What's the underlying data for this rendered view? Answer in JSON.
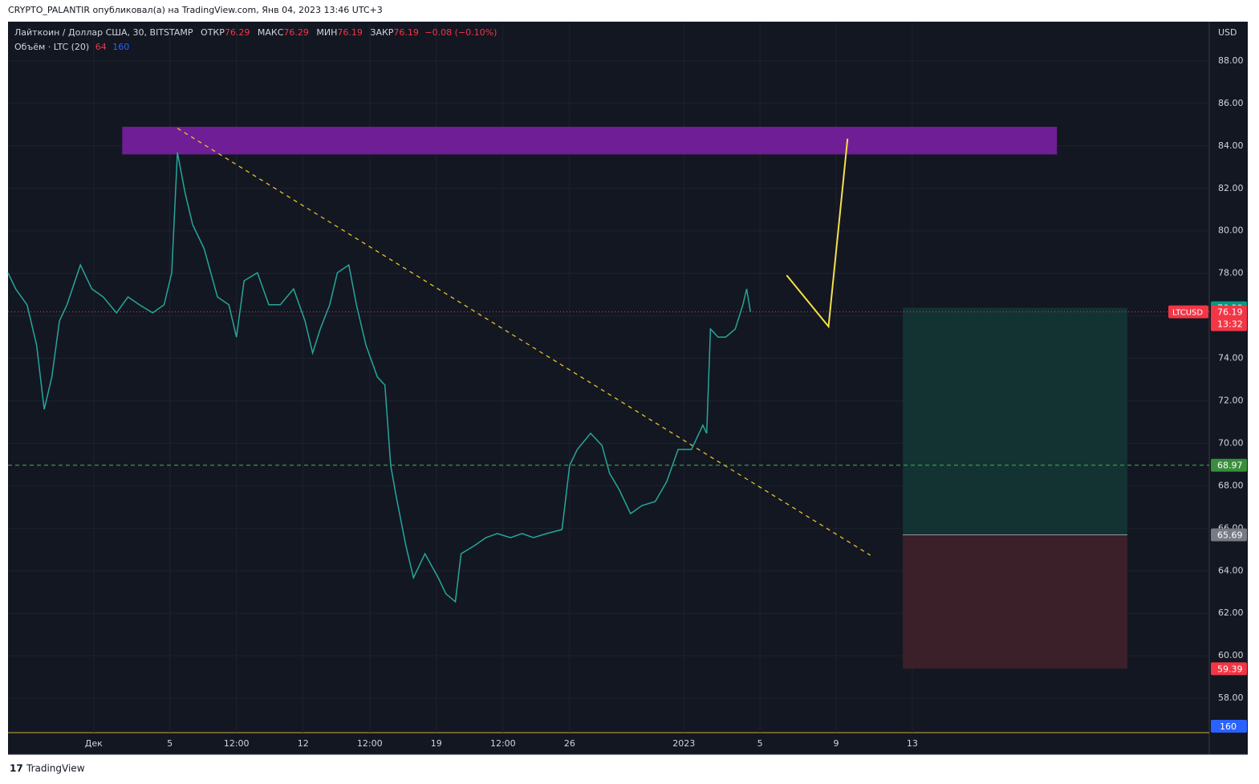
{
  "chart_data": {
    "type": "line",
    "header": "CRYPTO_PALANTIR опубликовал(а) на TradingView.com, Янв 04, 2023 13:46 UTC+3",
    "footer": "TradingView",
    "currency": "USD",
    "legend": {
      "open_label": "ОТКР",
      "open": 76.29,
      "high_label": "МАКС",
      "high": 76.29,
      "low_label": "МИН",
      "low": 76.19,
      "close_label": "ЗАКР",
      "close": 76.19,
      "change": "−0.08 (−0.10%)",
      "volume_label": "Объём · LTC (20)",
      "volume": 64,
      "volume_ma": 160
    },
    "x": [
      -4.5,
      -4.1,
      -3.5,
      -3.0,
      -2.6,
      -2.2,
      -1.8,
      -1.4,
      -0.7,
      -0.1,
      0.5,
      1.2,
      1.8,
      2.4,
      3.1,
      3.7,
      4.1,
      4.4,
      4.8,
      5.2,
      5.8,
      6.5,
      7.1,
      7.5,
      7.9,
      8.6,
      9.2,
      9.8,
      10.5,
      11.1,
      11.5,
      11.9,
      12.4,
      12.8,
      13.4,
      13.8,
      14.3,
      14.9,
      15.3,
      15.6,
      15.9,
      16.4,
      16.8,
      17.4,
      18.1,
      18.5,
      19.0,
      19.3,
      20.0,
      20.6,
      21.2,
      21.9,
      22.5,
      23.1,
      23.8,
      24.6,
      25.0,
      25.4,
      26.1,
      26.7,
      27.1,
      27.6,
      28.2,
      28.8,
      29.5,
      30.1,
      30.7,
      31.4,
      32.0,
      32.2,
      32.4,
      32.8,
      33.2,
      33.7,
      34.1,
      34.3,
      34.5
    ],
    "series": [
      {
        "name": "Лайткоин / Доллар США, 30, BITSTAMP",
        "color": "#26a69a",
        "values": [
          78.03,
          77.27,
          76.52,
          74.63,
          71.6,
          73.12,
          75.76,
          76.52,
          78.4,
          77.27,
          76.89,
          76.14,
          76.89,
          76.52,
          76.14,
          76.52,
          78.03,
          83.69,
          81.8,
          80.29,
          79.16,
          76.89,
          76.52,
          75.0,
          77.65,
          78.03,
          76.52,
          76.52,
          77.27,
          75.76,
          74.25,
          75.38,
          76.52,
          78.03,
          78.4,
          76.52,
          74.63,
          73.12,
          72.74,
          68.96,
          67.45,
          65.18,
          63.67,
          64.8,
          63.67,
          62.92,
          62.54,
          64.8,
          65.18,
          65.56,
          65.75,
          65.56,
          65.75,
          65.56,
          65.75,
          65.94,
          68.96,
          69.71,
          70.47,
          69.9,
          68.58,
          67.83,
          66.69,
          67.07,
          67.26,
          68.2,
          69.71,
          69.71,
          70.85,
          70.47,
          75.38,
          75.0,
          75.0,
          75.38,
          76.52,
          77.27,
          76.19
        ]
      }
    ],
    "xlim": [
      -4.5,
      58.6
    ],
    "xticks": [
      {
        "value": 0,
        "label": "Дек"
      },
      {
        "value": 4,
        "label": "5"
      },
      {
        "value": 7.5,
        "label": "12:00"
      },
      {
        "value": 11,
        "label": "12"
      },
      {
        "value": 14.5,
        "label": "12:00"
      },
      {
        "value": 18,
        "label": "19"
      },
      {
        "value": 21.5,
        "label": "12:00"
      },
      {
        "value": 25,
        "label": "26"
      },
      {
        "value": 31,
        "label": "2023"
      },
      {
        "value": 35,
        "label": "5"
      },
      {
        "value": 39,
        "label": "9"
      },
      {
        "value": 43,
        "label": "13"
      }
    ],
    "ylim": [
      56.38,
      89.81
    ],
    "yticks": [
      {
        "value": 58,
        "label": "58.00"
      },
      {
        "value": 60,
        "label": "60.00"
      },
      {
        "value": 62,
        "label": "62.00"
      },
      {
        "value": 64,
        "label": "64.00"
      },
      {
        "value": 66,
        "label": "66.00"
      },
      {
        "value": 68,
        "label": "68.00"
      },
      {
        "value": 70,
        "label": "70.00"
      },
      {
        "value": 72,
        "label": "72.00"
      },
      {
        "value": 74,
        "label": "74.00"
      },
      {
        "value": 76,
        "label": "76.00"
      },
      {
        "value": 78,
        "label": "78.00"
      },
      {
        "value": 80,
        "label": "80.00"
      },
      {
        "value": 82,
        "label": "82.00"
      },
      {
        "value": 84,
        "label": "84.00"
      },
      {
        "value": 86,
        "label": "86.00"
      },
      {
        "value": 88,
        "label": "88.00"
      }
    ],
    "grid": true,
    "annotations": {
      "zone": {
        "x": [
          1.5,
          50.6
        ],
        "y": [
          83.6,
          84.9
        ],
        "color": "#7b1fa2"
      },
      "trendline": {
        "x": [
          4.4,
          40.8
        ],
        "y": [
          84.83,
          64.73
        ],
        "color": "#e6c229"
      },
      "arrow": {
        "x": [
          36.4,
          38.6,
          39.6
        ],
        "y": [
          77.91,
          75.5,
          84.34
        ],
        "color": "#f5e04a"
      },
      "level": {
        "value": 68.97,
        "color": "#4caf50"
      },
      "position": {
        "x": [
          42.5,
          54.3
        ],
        "entry": 76.38,
        "target": 65.69,
        "stop": 59.39
      }
    },
    "last_price": {
      "value": 76.19,
      "symbol": "LTCUSD",
      "countdown": "13:32"
    }
  }
}
